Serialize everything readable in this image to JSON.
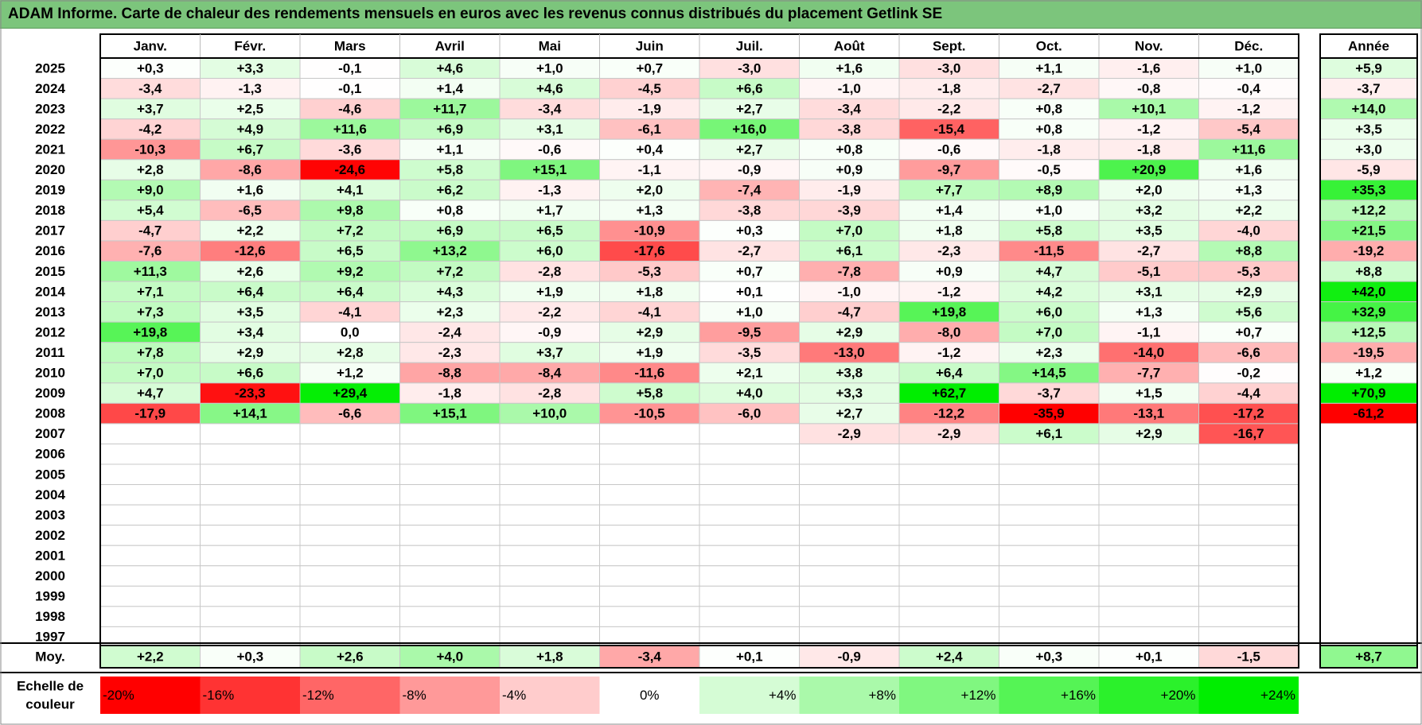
{
  "title": "ADAM Informe. Carte de chaleur des rendements mensuels en euros avec les revenus connus distribués du placement Getlink SE",
  "annual_label": "Année",
  "avg_label": "Moy.",
  "scale_label_line1": "Echelle de",
  "scale_label_line2": "couleur",
  "colors": {
    "title_bg": "#7cc57c",
    "max_red": "#ff0000",
    "max_green": "#00ee00"
  },
  "chart_data": {
    "type": "heatmap",
    "title": "ADAM Informe. Carte de chaleur des rendements mensuels en euros avec les revenus connus distribués du placement Getlink SE",
    "months": [
      "Janv.",
      "Févr.",
      "Mars",
      "Avril",
      "Mai",
      "Juin",
      "Juil.",
      "Août",
      "Sept.",
      "Oct.",
      "Nov.",
      "Déc."
    ],
    "rows": [
      {
        "year": "2025",
        "values": [
          "+0,3",
          "+3,3",
          "-0,1",
          "+4,6",
          "+1,0",
          "+0,7",
          "-3,0",
          "+1,6",
          "-3,0",
          "+1,1",
          "-1,6",
          "+1,0"
        ],
        "annual": "+5,9"
      },
      {
        "year": "2024",
        "values": [
          "-3,4",
          "-1,3",
          "-0,1",
          "+1,4",
          "+4,6",
          "-4,5",
          "+6,6",
          "-1,0",
          "-1,8",
          "-2,7",
          "-0,8",
          "-0,4"
        ],
        "annual": "-3,7"
      },
      {
        "year": "2023",
        "values": [
          "+3,7",
          "+2,5",
          "-4,6",
          "+11,7",
          "-3,4",
          "-1,9",
          "+2,7",
          "-3,4",
          "-2,2",
          "+0,8",
          "+10,1",
          "-1,2"
        ],
        "annual": "+14,0"
      },
      {
        "year": "2022",
        "values": [
          "-4,2",
          "+4,9",
          "+11,6",
          "+6,9",
          "+3,1",
          "-6,1",
          "+16,0",
          "-3,8",
          "-15,4",
          "+0,8",
          "-1,2",
          "-5,4"
        ],
        "annual": "+3,5"
      },
      {
        "year": "2021",
        "values": [
          "-10,3",
          "+6,7",
          "-3,6",
          "+1,1",
          "-0,6",
          "+0,4",
          "+2,7",
          "+0,8",
          "-0,6",
          "-1,8",
          "-1,8",
          "+11,6"
        ],
        "annual": "+3,0"
      },
      {
        "year": "2020",
        "values": [
          "+2,8",
          "-8,6",
          "-24,6",
          "+5,8",
          "+15,1",
          "-1,1",
          "-0,9",
          "+0,9",
          "-9,7",
          "-0,5",
          "+20,9",
          "+1,6"
        ],
        "annual": "-5,9"
      },
      {
        "year": "2019",
        "values": [
          "+9,0",
          "+1,6",
          "+4,1",
          "+6,2",
          "-1,3",
          "+2,0",
          "-7,4",
          "-1,9",
          "+7,7",
          "+8,9",
          "+2,0",
          "+1,3"
        ],
        "annual": "+35,3"
      },
      {
        "year": "2018",
        "values": [
          "+5,4",
          "-6,5",
          "+9,8",
          "+0,8",
          "+1,7",
          "+1,3",
          "-3,8",
          "-3,9",
          "+1,4",
          "+1,0",
          "+3,2",
          "+2,2"
        ],
        "annual": "+12,2"
      },
      {
        "year": "2017",
        "values": [
          "-4,7",
          "+2,2",
          "+7,2",
          "+6,9",
          "+6,5",
          "-10,9",
          "+0,3",
          "+7,0",
          "+1,8",
          "+5,8",
          "+3,5",
          "-4,0"
        ],
        "annual": "+21,5"
      },
      {
        "year": "2016",
        "values": [
          "-7,6",
          "-12,6",
          "+6,5",
          "+13,2",
          "+6,0",
          "-17,6",
          "-2,7",
          "+6,1",
          "-2,3",
          "-11,5",
          "-2,7",
          "+8,8"
        ],
        "annual": "-19,2"
      },
      {
        "year": "2015",
        "values": [
          "+11,3",
          "+2,6",
          "+9,2",
          "+7,2",
          "-2,8",
          "-5,3",
          "+0,7",
          "-7,8",
          "+0,9",
          "+4,7",
          "-5,1",
          "-5,3"
        ],
        "annual": "+8,8"
      },
      {
        "year": "2014",
        "values": [
          "+7,1",
          "+6,4",
          "+6,4",
          "+4,3",
          "+1,9",
          "+1,8",
          "+0,1",
          "-1,0",
          "-1,2",
          "+4,2",
          "+3,1",
          "+2,9"
        ],
        "annual": "+42,0"
      },
      {
        "year": "2013",
        "values": [
          "+7,3",
          "+3,5",
          "-4,1",
          "+2,3",
          "-2,2",
          "-4,1",
          "+1,0",
          "-4,7",
          "+19,8",
          "+6,0",
          "+1,3",
          "+5,6"
        ],
        "annual": "+32,9"
      },
      {
        "year": "2012",
        "values": [
          "+19,8",
          "+3,4",
          "0,0",
          "-2,4",
          "-0,9",
          "+2,9",
          "-9,5",
          "+2,9",
          "-8,0",
          "+7,0",
          "-1,1",
          "+0,7"
        ],
        "annual": "+12,5"
      },
      {
        "year": "2011",
        "values": [
          "+7,8",
          "+2,9",
          "+2,8",
          "-2,3",
          "+3,7",
          "+1,9",
          "-3,5",
          "-13,0",
          "-1,2",
          "+2,3",
          "-14,0",
          "-6,6"
        ],
        "annual": "-19,5"
      },
      {
        "year": "2010",
        "values": [
          "+7,0",
          "+6,6",
          "+1,2",
          "-8,8",
          "-8,4",
          "-11,6",
          "+2,1",
          "+3,8",
          "+6,4",
          "+14,5",
          "-7,7",
          "-0,2"
        ],
        "annual": "+1,2"
      },
      {
        "year": "2009",
        "values": [
          "+4,7",
          "-23,3",
          "+29,4",
          "-1,8",
          "-2,8",
          "+5,8",
          "+4,0",
          "+3,3",
          "+62,7",
          "-3,7",
          "+1,5",
          "-4,4"
        ],
        "annual": "+70,9"
      },
      {
        "year": "2008",
        "values": [
          "-17,9",
          "+14,1",
          "-6,6",
          "+15,1",
          "+10,0",
          "-10,5",
          "-6,0",
          "+2,7",
          "-12,2",
          "-35,9",
          "-13,1",
          "-17,2"
        ],
        "annual": "-61,2"
      },
      {
        "year": "2007",
        "values": [
          "",
          "",
          "",
          "",
          "",
          "",
          "",
          "-2,9",
          "-2,9",
          "+6,1",
          "+2,9",
          "-16,7"
        ],
        "annual": ""
      },
      {
        "year": "2006",
        "values": [
          "",
          "",
          "",
          "",
          "",
          "",
          "",
          "",
          "",
          "",
          "",
          ""
        ],
        "annual": ""
      },
      {
        "year": "2005",
        "values": [
          "",
          "",
          "",
          "",
          "",
          "",
          "",
          "",
          "",
          "",
          "",
          ""
        ],
        "annual": ""
      },
      {
        "year": "2004",
        "values": [
          "",
          "",
          "",
          "",
          "",
          "",
          "",
          "",
          "",
          "",
          "",
          ""
        ],
        "annual": ""
      },
      {
        "year": "2003",
        "values": [
          "",
          "",
          "",
          "",
          "",
          "",
          "",
          "",
          "",
          "",
          "",
          ""
        ],
        "annual": ""
      },
      {
        "year": "2002",
        "values": [
          "",
          "",
          "",
          "",
          "",
          "",
          "",
          "",
          "",
          "",
          "",
          ""
        ],
        "annual": ""
      },
      {
        "year": "2001",
        "values": [
          "",
          "",
          "",
          "",
          "",
          "",
          "",
          "",
          "",
          "",
          "",
          ""
        ],
        "annual": ""
      },
      {
        "year": "2000",
        "values": [
          "",
          "",
          "",
          "",
          "",
          "",
          "",
          "",
          "",
          "",
          "",
          ""
        ],
        "annual": ""
      },
      {
        "year": "1999",
        "values": [
          "",
          "",
          "",
          "",
          "",
          "",
          "",
          "",
          "",
          "",
          "",
          ""
        ],
        "annual": ""
      },
      {
        "year": "1998",
        "values": [
          "",
          "",
          "",
          "",
          "",
          "",
          "",
          "",
          "",
          "",
          "",
          ""
        ],
        "annual": ""
      },
      {
        "year": "1997",
        "values": [
          "",
          "",
          "",
          "",
          "",
          "",
          "",
          "",
          "",
          "",
          "",
          ""
        ],
        "annual": ""
      }
    ],
    "average": {
      "values": [
        "+2,2",
        "+0,3",
        "+2,6",
        "+4,0",
        "+1,8",
        "-3,4",
        "+0,1",
        "-0,9",
        "+2,4",
        "+0,3",
        "+0,1",
        "-1,5"
      ],
      "annual": "+8,7"
    },
    "scale": [
      "-20%",
      "-16%",
      "-12%",
      "-8%",
      "-4%",
      "0%",
      "+4%",
      "+8%",
      "+12%",
      "+16%",
      "+20%",
      "+24%"
    ]
  }
}
